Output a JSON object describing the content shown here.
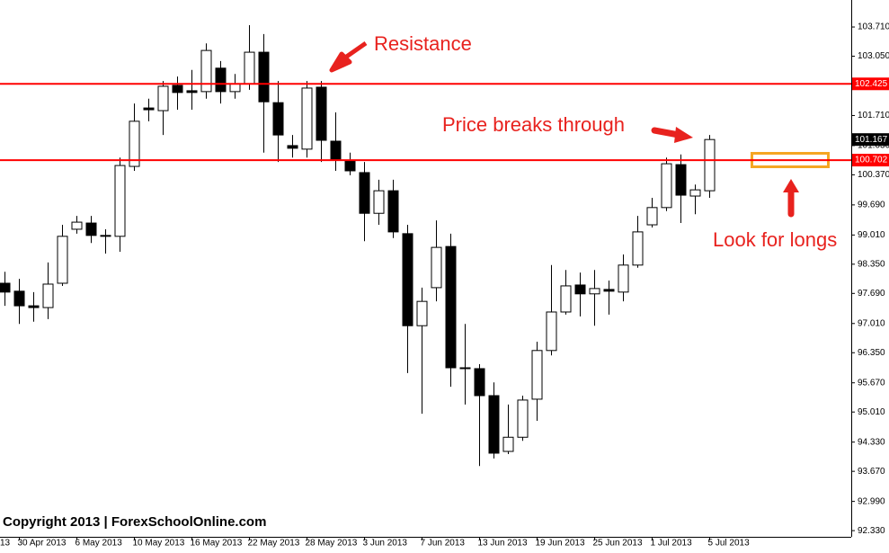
{
  "chart_data": {
    "type": "candlestick",
    "categories": [
      null,
      "30 Apr 2013",
      null,
      null,
      null,
      "6 May 2013",
      null,
      null,
      null,
      "10 May 2013",
      null,
      null,
      null,
      "16 May 2013",
      null,
      null,
      null,
      "22 May 2013",
      null,
      null,
      null,
      "28 May 2013",
      null,
      null,
      null,
      "3 Jun 2013",
      null,
      null,
      null,
      "7 Jun 2013",
      null,
      null,
      null,
      "13 Jun 2013",
      null,
      null,
      null,
      "19 Jun 2013",
      null,
      null,
      null,
      "25 Jun 2013",
      null,
      null,
      null,
      "1 Jul 2013",
      null,
      null,
      null,
      "5 Jul 2013"
    ],
    "open": [
      97.92,
      97.74,
      97.41,
      97.37,
      97.92,
      99.14,
      99.28,
      99.0,
      98.98,
      100.56,
      101.88,
      101.82,
      102.39,
      102.27,
      102.25,
      102.78,
      102.25,
      102.43,
      103.14,
      102.0,
      101.03,
      100.95,
      102.35,
      101.13,
      100.7,
      100.42,
      99.5,
      100.01,
      99.04,
      96.96,
      97.82,
      98.75,
      96.01,
      95.99,
      95.38,
      94.12,
      94.44,
      95.3,
      96.4,
      97.27,
      97.88,
      97.68,
      97.78,
      97.72,
      98.33,
      99.24,
      99.63,
      100.6,
      99.89,
      100.01
    ],
    "high": [
      98.18,
      98.02,
      97.72,
      98.39,
      99.24,
      99.44,
      99.44,
      99.14,
      100.76,
      101.98,
      102.09,
      102.49,
      102.59,
      102.74,
      103.34,
      102.94,
      102.65,
      103.75,
      103.55,
      102.49,
      101.27,
      102.49,
      102.49,
      101.78,
      100.87,
      100.66,
      100.26,
      100.26,
      99.24,
      97.82,
      99.34,
      99.04,
      97.0,
      96.09,
      95.68,
      95.18,
      95.38,
      96.6,
      98.33,
      98.22,
      98.16,
      98.22,
      97.98,
      98.57,
      99.44,
      99.85,
      100.76,
      100.83,
      100.15,
      101.27
    ],
    "low": [
      97.41,
      97.0,
      97.05,
      97.11,
      97.86,
      99.04,
      98.83,
      98.59,
      98.63,
      100.46,
      101.58,
      101.27,
      101.84,
      101.84,
      102.09,
      101.98,
      102.09,
      102.29,
      100.87,
      100.66,
      100.76,
      100.76,
      100.66,
      100.46,
      100.36,
      98.87,
      99.24,
      98.94,
      95.89,
      94.97,
      97.51,
      95.58,
      95.18,
      93.79,
      93.96,
      94.06,
      94.36,
      94.81,
      96.29,
      97.21,
      97.17,
      96.96,
      97.21,
      97.51,
      98.27,
      99.18,
      99.55,
      99.28,
      99.48,
      99.85
    ],
    "close": [
      97.72,
      97.41,
      97.37,
      97.9,
      98.98,
      99.3,
      99.0,
      98.98,
      100.58,
      101.58,
      101.84,
      102.37,
      102.23,
      102.23,
      103.18,
      102.25,
      102.43,
      103.14,
      102.02,
      101.27,
      100.97,
      102.33,
      101.15,
      100.7,
      100.46,
      99.5,
      100.01,
      99.08,
      96.96,
      97.51,
      98.73,
      96.01,
      95.99,
      95.38,
      94.08,
      94.44,
      95.28,
      96.4,
      97.27,
      97.86,
      97.68,
      97.8,
      97.74,
      98.33,
      99.08,
      99.63,
      100.62,
      99.91,
      100.03,
      101.167
    ],
    "ylim": [
      92.19,
      104.32
    ],
    "yticks": [
      {
        "value": 103.71,
        "label": "103.710"
      },
      {
        "value": 103.05,
        "label": "103.050"
      },
      {
        "value": 101.71,
        "label": "101.710"
      },
      {
        "value": 101.03,
        "label": "101.030"
      },
      {
        "value": 100.37,
        "label": "100.370"
      },
      {
        "value": 99.69,
        "label": "99.690"
      },
      {
        "value": 99.01,
        "label": "99.010"
      },
      {
        "value": 98.35,
        "label": "98.350"
      },
      {
        "value": 97.69,
        "label": "97.690"
      },
      {
        "value": 97.01,
        "label": "97.010"
      },
      {
        "value": 96.35,
        "label": "96.350"
      },
      {
        "value": 95.67,
        "label": "95.670"
      },
      {
        "value": 95.01,
        "label": "95.010"
      },
      {
        "value": 94.33,
        "label": "94.330"
      },
      {
        "value": 93.67,
        "label": "93.670"
      },
      {
        "value": 92.99,
        "label": "92.990"
      },
      {
        "value": 92.33,
        "label": "92.330"
      }
    ],
    "levels": [
      {
        "value": 102.425,
        "label": "102.425"
      },
      {
        "value": 100.702,
        "label": "100.702"
      }
    ],
    "level_color": "#ff0000",
    "last_price": {
      "value": 101.167,
      "label": "101.167"
    },
    "cut_label": "13",
    "annotations": {
      "resistance": "Resistance",
      "breaks": "Price breaks through",
      "longs": "Look for longs"
    },
    "copyright": "Copyright 2013 | ForexSchoolOnline.com"
  }
}
